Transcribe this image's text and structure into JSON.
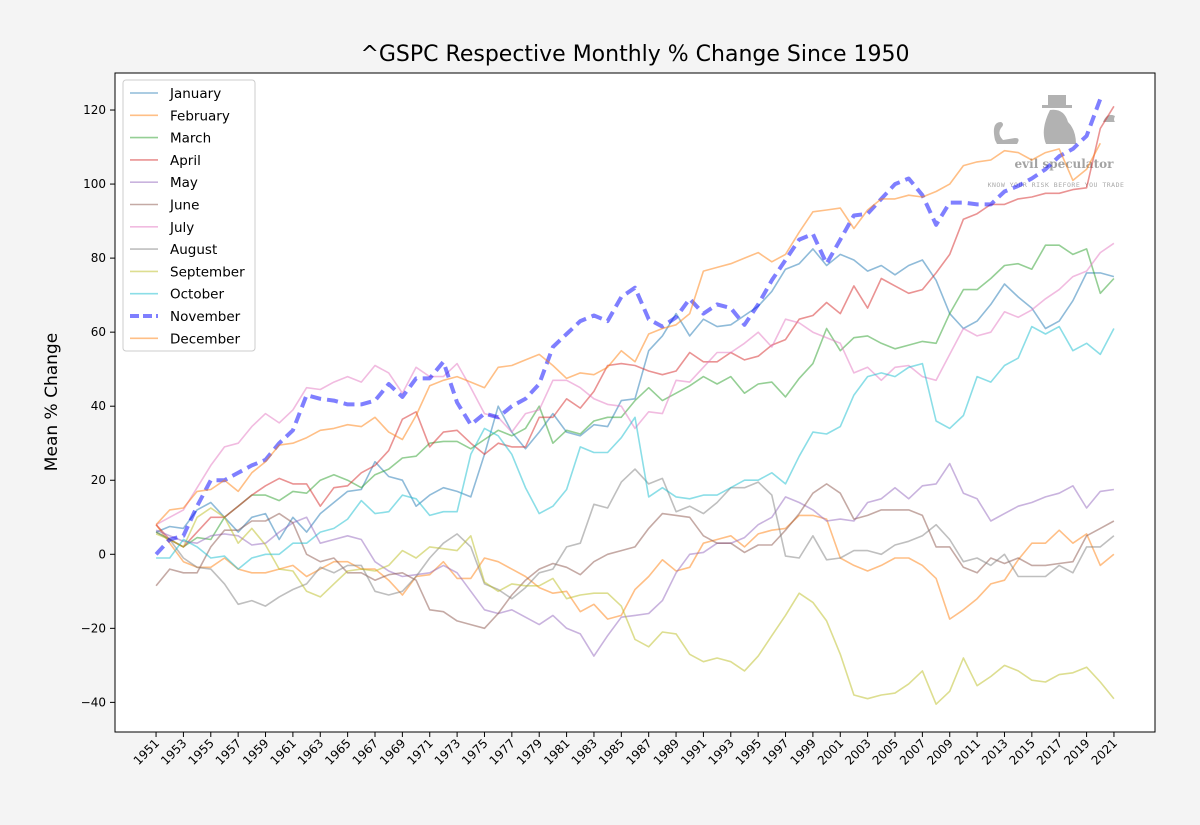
{
  "chart_data": {
    "type": "line",
    "title": "^GSPC Respective Monthly % Change Since 1950",
    "xlabel": "",
    "ylabel": "Mean % Change",
    "xlim": [
      1948,
      2024
    ],
    "ylim": [
      -48,
      130
    ],
    "yticks": [
      -40,
      -20,
      0,
      20,
      40,
      60,
      80,
      100,
      120
    ],
    "xticks": [
      1951,
      1953,
      1955,
      1957,
      1959,
      1961,
      1963,
      1965,
      1967,
      1969,
      1971,
      1973,
      1975,
      1977,
      1979,
      1981,
      1983,
      1985,
      1987,
      1989,
      1991,
      1993,
      1995,
      1997,
      1999,
      2001,
      2003,
      2005,
      2007,
      2009,
      2011,
      2013,
      2015,
      2017,
      2019,
      2021
    ],
    "grid": false,
    "legend_position": "top-left",
    "x_start_year": 1951,
    "series": [
      {
        "name": "January",
        "color": "#1f77b4",
        "style": "solid",
        "values": [
          6,
          7.5,
          7,
          12,
          14,
          10,
          6,
          10,
          11,
          4,
          10,
          6,
          11,
          14,
          17,
          17.5,
          25,
          21,
          20,
          13,
          16,
          18,
          17,
          15.5,
          27,
          40,
          33,
          28.5,
          33,
          38,
          33,
          32,
          35,
          34.5,
          41.5,
          42,
          55,
          59,
          65,
          59,
          63.5,
          61.5,
          62,
          64.5,
          67,
          71,
          77,
          78.5,
          82.5,
          78,
          81,
          79.5,
          76.5,
          78,
          75.5,
          78,
          79.5,
          74,
          65,
          61,
          63,
          67.5,
          73,
          69.5,
          66.5,
          61,
          63,
          68.5,
          76,
          76,
          75
        ]
      },
      {
        "name": "February",
        "color": "#ff7f0e",
        "style": "solid",
        "values": [
          8,
          3,
          -2,
          -3.5,
          -3.5,
          -1,
          -4,
          -5,
          -5,
          -4,
          -3,
          -6,
          -4,
          -2,
          -2,
          -4,
          -4,
          -7,
          -11,
          -6,
          -5.5,
          -2,
          -6.5,
          -6.5,
          -1,
          -2,
          -4,
          -6,
          -9,
          -10.5,
          -10,
          -15.5,
          -13.5,
          -17.5,
          -16.5,
          -9.5,
          -6,
          -1.5,
          -4.5,
          -3.5,
          3,
          4,
          5,
          2,
          5.5,
          6.5,
          7,
          10.5,
          10.5,
          9.5,
          -1,
          -3,
          -4.5,
          -3,
          -1,
          -1,
          -3,
          -6.5,
          -17.5,
          -15,
          -12,
          -8,
          -7,
          -1.5,
          3,
          3,
          6.5,
          3,
          5.5,
          -3,
          0
        ]
      },
      {
        "name": "March",
        "color": "#2ca02c",
        "style": "solid",
        "values": [
          6,
          4,
          2,
          4.5,
          4,
          10,
          13,
          16,
          16,
          14.5,
          17,
          16.5,
          20,
          21.5,
          20,
          18,
          21.5,
          23,
          26,
          26.5,
          30,
          30.5,
          30.5,
          28.5,
          31,
          33.5,
          32,
          34,
          40,
          30,
          33.5,
          32.5,
          36,
          37,
          37,
          41.5,
          45,
          41.5,
          43.5,
          45.5,
          48,
          46,
          48,
          43.5,
          46,
          46.5,
          42.5,
          47.5,
          51.5,
          61,
          55,
          58.5,
          59,
          57,
          55.5,
          56.5,
          57.5,
          57,
          65,
          71.5,
          71.5,
          74.5,
          78,
          78.5,
          77,
          83.5,
          83.5,
          81,
          82.5,
          70.5,
          74.5
        ]
      },
      {
        "name": "April",
        "color": "#d62728",
        "style": "solid",
        "values": [
          8,
          4,
          2,
          6,
          10,
          10,
          13,
          16,
          18.5,
          20.5,
          19,
          19,
          13,
          18,
          18.5,
          22,
          24,
          28,
          36.5,
          38.5,
          29,
          33,
          33.5,
          30,
          27,
          30,
          29,
          29,
          37,
          37,
          42,
          39.5,
          44,
          51,
          51.5,
          51,
          49.5,
          48.5,
          49.5,
          54.5,
          52,
          52,
          54.5,
          52.5,
          53.5,
          56.5,
          58,
          63.5,
          64.5,
          68,
          65,
          72.5,
          66.5,
          74.5,
          72.5,
          70.5,
          71.5,
          76,
          81,
          90.5,
          92,
          94.5,
          94.5,
          96,
          96.5,
          97.5,
          97.5,
          98.5,
          99,
          115,
          121
        ]
      },
      {
        "name": "May",
        "color": "#9467bd",
        "style": "solid",
        "values": [
          6.5,
          5,
          3.5,
          3,
          5,
          5.5,
          5,
          2.5,
          3,
          6,
          8.5,
          10,
          3,
          4,
          5,
          4,
          -2,
          -4.5,
          -6,
          -5.5,
          -5,
          -3,
          -5,
          -10,
          -15,
          -16,
          -15,
          -17,
          -19,
          -16.5,
          -20,
          -21.5,
          -27.5,
          -22,
          -17,
          -16.5,
          -16,
          -12.5,
          -5,
          0,
          0.5,
          3,
          3,
          4.5,
          8,
          10,
          15.5,
          14,
          12,
          9,
          9.5,
          9,
          14,
          15,
          18,
          15,
          18.5,
          19,
          24.5,
          16.5,
          15,
          9,
          11,
          13,
          14,
          15.5,
          16.5,
          18.5,
          12.5,
          17,
          17.5
        ]
      },
      {
        "name": "June",
        "color": "#8c564b",
        "style": "solid",
        "values": [
          -8.5,
          -4,
          -5,
          -5,
          2,
          6.5,
          6.5,
          9,
          9,
          11,
          8.5,
          0,
          -2,
          -1,
          -5,
          -5,
          -7,
          -5.5,
          -5,
          -7,
          -15,
          -15.5,
          -18,
          -19,
          -20,
          -16,
          -11,
          -7,
          -4,
          -2.5,
          -3.5,
          -5.5,
          -2,
          0,
          1,
          2,
          7,
          11,
          10.5,
          10,
          5,
          3,
          3,
          0.5,
          2.5,
          2.5,
          6.5,
          11,
          16.5,
          19,
          16.5,
          9.5,
          10.5,
          12,
          12,
          12,
          10.5,
          2,
          2,
          -3.5,
          -5,
          -1,
          -2.5,
          -1,
          -3,
          -3,
          -2.5,
          -2,
          5,
          7,
          9
        ]
      },
      {
        "name": "July",
        "color": "#e377c2",
        "style": "solid",
        "values": [
          8,
          10,
          12,
          18,
          24,
          29,
          30,
          34.5,
          38,
          35.5,
          39,
          45,
          44.5,
          46.5,
          48,
          46.5,
          51,
          49,
          43.5,
          50.5,
          48,
          48,
          51.5,
          45,
          38,
          37,
          33,
          38,
          39,
          47,
          47,
          45,
          42,
          40.5,
          40,
          34,
          38.5,
          38,
          47,
          46.5,
          50.5,
          54.5,
          54.5,
          57,
          60,
          56,
          63.5,
          62.5,
          60,
          58.5,
          57,
          49,
          50.5,
          47,
          50.5,
          51,
          48,
          47,
          54,
          61,
          59,
          60,
          65.5,
          64,
          66,
          69,
          71.5,
          75,
          76.5,
          81.5,
          84
        ]
      },
      {
        "name": "August",
        "color": "#7f7f7f",
        "style": "solid",
        "values": [
          6,
          4,
          -1,
          -3.5,
          -4,
          -8,
          -13.5,
          -12.5,
          -14,
          -11.5,
          -9.5,
          -8,
          -3.5,
          -5,
          -3,
          -3,
          -10,
          -11,
          -10,
          -6,
          -1,
          3,
          5.5,
          2,
          -8,
          -9.5,
          -12,
          -9,
          -5,
          -4,
          2,
          3,
          13.5,
          12.5,
          19.5,
          23,
          19,
          20.5,
          11.5,
          13,
          11,
          14,
          18,
          18,
          19.5,
          16,
          -0.5,
          -1,
          5,
          -1.5,
          -1,
          1,
          1,
          0,
          2.5,
          3.5,
          5,
          8,
          4,
          -2,
          -1,
          -3,
          0,
          -6,
          -6,
          -6,
          -3,
          -5,
          2,
          2,
          5
        ]
      },
      {
        "name": "September",
        "color": "#bcbd22",
        "style": "solid",
        "values": [
          5.5,
          4,
          2,
          10,
          12.5,
          10,
          3,
          7,
          2.5,
          -4,
          -4.5,
          -10,
          -11.5,
          -8,
          -4.5,
          -4,
          -4.5,
          -3,
          1,
          -1,
          2,
          1.5,
          1,
          5,
          -7.5,
          -10,
          -8,
          -8.5,
          -8.5,
          -6.5,
          -12,
          -11,
          -10.5,
          -10.5,
          -14,
          -23,
          -25,
          -21,
          -21.5,
          -27,
          -29,
          -28,
          -29,
          -31.5,
          -27.5,
          -22,
          -16.5,
          -10.5,
          -13,
          -18,
          -27,
          -38,
          -39,
          -38,
          -37.5,
          -35,
          -31.5,
          -40.5,
          -37,
          -28,
          -35.5,
          -33,
          -30,
          -31.5,
          -34,
          -34.5,
          -32.5,
          -32,
          -30.5,
          -34.5,
          -39
        ]
      },
      {
        "name": "October",
        "color": "#17becf",
        "style": "solid",
        "values": [
          -1,
          -1,
          4,
          2,
          -1,
          -0.5,
          -4,
          -1,
          0,
          0,
          3,
          3,
          6,
          7,
          9.5,
          14.5,
          11,
          11.5,
          16,
          15,
          10.5,
          11.5,
          11.5,
          27,
          34,
          32,
          27,
          18,
          11,
          13,
          17.5,
          29,
          27.5,
          27.5,
          31.5,
          37,
          15.5,
          18,
          15.5,
          15,
          16,
          16,
          18,
          20,
          20,
          22,
          19,
          26.5,
          33,
          32.5,
          34.5,
          43,
          48,
          49,
          48,
          50.5,
          51.5,
          36,
          34,
          37.5,
          48,
          46.5,
          51,
          53,
          61.5,
          59.5,
          61.5,
          55,
          57,
          54,
          61
        ]
      },
      {
        "name": "November",
        "color": "#0000ff",
        "style": "dashed",
        "values": [
          0,
          4,
          5,
          13,
          20,
          20,
          22,
          24,
          25.5,
          30,
          33.5,
          43,
          42,
          41.5,
          40.5,
          40.5,
          41.5,
          46,
          42.5,
          47.5,
          47.5,
          52,
          41,
          35,
          38,
          37,
          40,
          42,
          46,
          56,
          59.5,
          63,
          64.5,
          63,
          69.5,
          72,
          63.5,
          61.5,
          64,
          69,
          65,
          67.5,
          66.5,
          62,
          67.5,
          74,
          79.5,
          85,
          86.5,
          78.5,
          85,
          91.5,
          92,
          96,
          100,
          101.5,
          97,
          89,
          95,
          95,
          94.5,
          94.5,
          98,
          99.5,
          101.5,
          104,
          107.5,
          109.5,
          113,
          123,
          null
        ]
      },
      {
        "name": "December",
        "color": "#ff7f0e",
        "style": "solid",
        "values": [
          8,
          12,
          12.5,
          17,
          17.5,
          20,
          17,
          22,
          25,
          29.5,
          30,
          31.5,
          33.5,
          34,
          35,
          34.5,
          37,
          33,
          31,
          37.5,
          45.5,
          47,
          48,
          46.5,
          45,
          50.5,
          51,
          52.5,
          54,
          51,
          47.5,
          49,
          48.5,
          50.5,
          55,
          52,
          59.5,
          61,
          62,
          65,
          76.5,
          77.5,
          78.5,
          80,
          81.5,
          79,
          81,
          87,
          92.5,
          93,
          93.5,
          88,
          93,
          96,
          96,
          97,
          96.5,
          98,
          100,
          105,
          106,
          106.5,
          109,
          108.5,
          106.5,
          108.5,
          109.5,
          101,
          104,
          111,
          null
        ]
      }
    ]
  },
  "watermark": {
    "brand": "evil speculator",
    "tagline": "KNOW YOUR RISK BEFORE YOU TRADE"
  }
}
